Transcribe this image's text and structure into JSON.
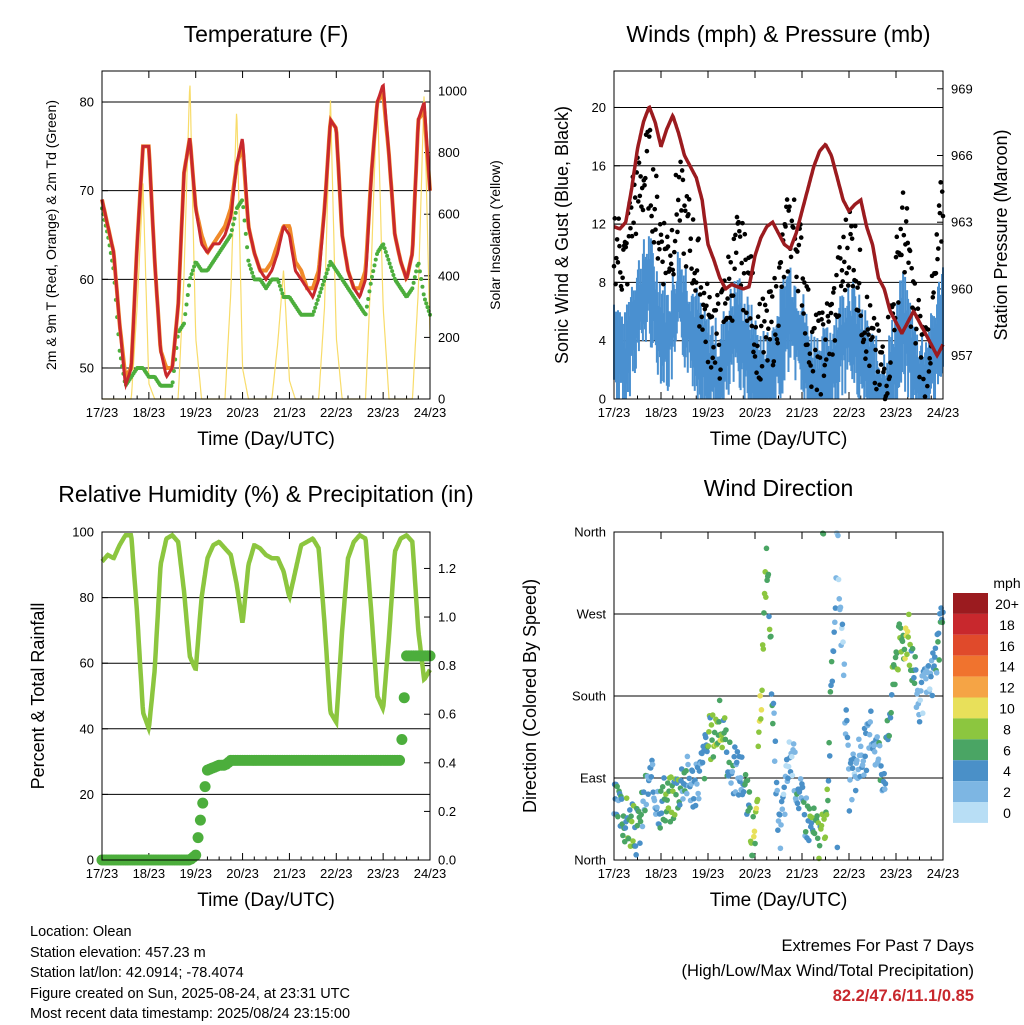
{
  "x_tick_labels": [
    "17/23",
    "18/23",
    "19/23",
    "20/23",
    "21/23",
    "22/23",
    "23/23",
    "24/23"
  ],
  "x_axis_label": "Time (Day/UTC)",
  "colors": {
    "temp_2m": "#c8282d",
    "temp_9m": "#f08a2a",
    "dewpoint": "#4cae3c",
    "solar": "#f8dc6a",
    "wind": "#4a90d0",
    "gust": "#000000",
    "pressure": "#9b1b1f",
    "rh": "#8cc63f",
    "precip": "#4cae3c"
  },
  "chart_data": [
    {
      "type": "line",
      "title": "Temperature (F)",
      "xlabel": "Time (Day/UTC)",
      "ylabel": "2m & 9m T (Red, Orange) & 2m Td (Green)",
      "ylabel_right": "Solar Insolation (Yellow)",
      "ylim": [
        46.5,
        83.5
      ],
      "ylim_right": [
        0,
        1065
      ],
      "yticks": [
        50,
        60,
        70,
        80
      ],
      "yticks_right": [
        0,
        200,
        400,
        600,
        800,
        1000
      ],
      "grid": true,
      "x": [
        "17/23",
        "17/23+3h",
        "17/23+6h",
        "17/23+9h",
        "17/23+12h",
        "17/23+15h",
        "17/23+18h",
        "17/23+21h",
        "18/23",
        "18/23+3h",
        "18/23+6h",
        "18/23+9h",
        "18/23+12h",
        "18/23+15h",
        "18/23+18h",
        "18/23+21h",
        "19/23",
        "19/23+3h",
        "19/23+6h",
        "19/23+9h",
        "19/23+12h",
        "19/23+15h",
        "19/23+18h",
        "19/23+21h",
        "20/23",
        "20/23+3h",
        "20/23+6h",
        "20/23+9h",
        "20/23+12h",
        "20/23+15h",
        "20/23+18h",
        "20/23+21h",
        "21/23",
        "21/23+3h",
        "21/23+6h",
        "21/23+9h",
        "21/23+12h",
        "21/23+15h",
        "21/23+18h",
        "21/23+21h",
        "22/23",
        "22/23+3h",
        "22/23+6h",
        "22/23+9h",
        "22/23+12h",
        "22/23+15h",
        "22/23+18h",
        "22/23+21h",
        "23/23",
        "23/23+3h",
        "23/23+6h",
        "23/23+9h",
        "23/23+12h",
        "23/23+15h",
        "23/23+18h",
        "23/23+21h",
        "24/23"
      ],
      "series": [
        {
          "name": "2m T",
          "values": [
            69,
            66,
            63,
            55,
            48,
            50,
            64,
            75,
            75,
            62,
            52,
            49,
            50,
            57,
            72,
            76,
            68,
            64,
            63,
            64,
            64,
            65,
            67,
            73,
            76,
            66,
            63,
            61,
            60,
            61,
            63,
            66,
            65,
            61,
            60,
            59,
            58,
            60,
            68,
            78,
            77,
            65,
            61,
            59,
            58,
            60,
            72,
            80,
            82,
            74,
            65,
            62,
            60,
            63,
            78,
            80,
            70
          ]
        },
        {
          "name": "9m T",
          "values": [
            69,
            66,
            63,
            55,
            49,
            50,
            64,
            75,
            75,
            62,
            52,
            50,
            50,
            57,
            72,
            76,
            68,
            65,
            63,
            64,
            65,
            66,
            68,
            73,
            75,
            66,
            63,
            61,
            61,
            62,
            64,
            66,
            66,
            62,
            61,
            59,
            59,
            61,
            68,
            78,
            77,
            65,
            61,
            59,
            59,
            61,
            72,
            80,
            81,
            74,
            65,
            62,
            60,
            63,
            78,
            79,
            70
          ]
        },
        {
          "name": "2m Td",
          "values": [
            68,
            65,
            61,
            52,
            48,
            49,
            50,
            50,
            49,
            49,
            48,
            48,
            48,
            54,
            55,
            60,
            62,
            61,
            61,
            62,
            63,
            64,
            65,
            68,
            69,
            62,
            60,
            60,
            59,
            60,
            60,
            58,
            58,
            57,
            56,
            56,
            56,
            58,
            60,
            62,
            61,
            60,
            59,
            58,
            57,
            56,
            60,
            63,
            64,
            62,
            60,
            59,
            58,
            59,
            62,
            58,
            56
          ]
        },
        {
          "name": "Solar",
          "values": [
            0,
            0,
            0,
            0,
            0,
            0,
            300,
            700,
            50,
            0,
            0,
            0,
            0,
            0,
            400,
            1040,
            200,
            0,
            0,
            0,
            0,
            0,
            350,
            950,
            100,
            0,
            0,
            0,
            0,
            0,
            180,
            420,
            60,
            0,
            0,
            0,
            0,
            0,
            300,
            980,
            200,
            0,
            0,
            0,
            0,
            0,
            450,
            1000,
            300,
            0,
            0,
            0,
            0,
            0,
            350,
            1000,
            200
          ]
        }
      ]
    },
    {
      "type": "scatter",
      "title": "Winds (mph) & Pressure (mb)",
      "xlabel": "Time (Day/UTC)",
      "ylabel": "Sonic Wind & Gust (Blue, Black)",
      "ylabel_right": "Station Pressure (Maroon)",
      "ylim": [
        0,
        22.5
      ],
      "ylim_right": [
        955.05,
        969.8
      ],
      "yticks": [
        0,
        4,
        8,
        12,
        16,
        20
      ],
      "yticks_right": [
        957,
        960,
        963,
        966,
        969
      ],
      "grid": true,
      "x": [
        "17/23",
        "17/23+3h",
        "17/23+6h",
        "17/23+9h",
        "17/23+12h",
        "17/23+15h",
        "17/23+18h",
        "17/23+21h",
        "18/23",
        "18/23+3h",
        "18/23+6h",
        "18/23+9h",
        "18/23+12h",
        "18/23+15h",
        "18/23+18h",
        "18/23+21h",
        "19/23",
        "19/23+3h",
        "19/23+6h",
        "19/23+9h",
        "19/23+12h",
        "19/23+15h",
        "19/23+18h",
        "19/23+21h",
        "20/23",
        "20/23+3h",
        "20/23+6h",
        "20/23+9h",
        "20/23+12h",
        "20/23+15h",
        "20/23+18h",
        "20/23+21h",
        "21/23",
        "21/23+3h",
        "21/23+6h",
        "21/23+9h",
        "21/23+12h",
        "21/23+15h",
        "21/23+18h",
        "21/23+21h",
        "22/23",
        "22/23+3h",
        "22/23+6h",
        "22/23+9h",
        "22/23+12h",
        "22/23+15h",
        "22/23+18h",
        "22/23+21h",
        "23/23",
        "23/23+3h",
        "23/23+6h",
        "23/23+9h",
        "23/23+12h",
        "23/23+15h",
        "23/23+18h",
        "23/23+21h",
        "24/23"
      ],
      "series": [
        {
          "name": "Sonic Wind",
          "values": [
            5,
            4,
            3,
            6,
            7,
            8,
            9,
            7,
            6,
            5,
            6,
            8,
            7,
            6,
            5,
            4,
            3,
            3,
            2,
            4,
            5,
            6,
            5,
            4,
            3,
            2,
            2,
            3,
            4,
            6,
            7,
            6,
            5,
            3,
            2,
            2,
            2,
            3,
            4,
            5,
            6,
            5,
            4,
            3,
            2,
            1,
            1,
            2,
            4,
            6,
            5,
            3,
            2,
            2,
            3,
            5,
            7
          ]
        },
        {
          "name": "Gust",
          "values": [
            11,
            10,
            9,
            13,
            14,
            15,
            16,
            13,
            11,
            10,
            11,
            14,
            12,
            11,
            9,
            7,
            5,
            5,
            4,
            7,
            8,
            10,
            9,
            8,
            5,
            4,
            4,
            5,
            7,
            10,
            12,
            11,
            9,
            5,
            3,
            3,
            4,
            5,
            7,
            9,
            11,
            10,
            7,
            5,
            3,
            2,
            2,
            4,
            8,
            12,
            10,
            6,
            4,
            3,
            5,
            9,
            14
          ]
        },
        {
          "name": "Pressure",
          "values": [
            962.8,
            962.7,
            963.0,
            964.5,
            966.3,
            967.5,
            968.2,
            967.5,
            966.4,
            967.2,
            967.8,
            967.0,
            966.0,
            965.5,
            965.0,
            964.0,
            962.0,
            961.3,
            960.5,
            960.0,
            960.2,
            960.1,
            960.0,
            960.1,
            961.5,
            962.3,
            962.8,
            963.0,
            962.5,
            962.0,
            961.8,
            962.5,
            963.5,
            964.5,
            965.5,
            966.2,
            966.5,
            966.0,
            965.0,
            964.0,
            963.5,
            963.8,
            964.0,
            962.8,
            962.0,
            960.5,
            960.0,
            959.0,
            958.5,
            958.0,
            958.5,
            959.0,
            958.5,
            958.0,
            957.5,
            957.0,
            957.5
          ]
        }
      ]
    },
    {
      "type": "line",
      "title": "Relative Humidity (%) & Precipitation (in)",
      "xlabel": "Time (Day/UTC)",
      "ylabel": "Percent & Total Rainfall",
      "ylim": [
        0,
        100
      ],
      "ylim_right": [
        0,
        1.35
      ],
      "yticks": [
        0,
        20,
        40,
        60,
        80,
        100
      ],
      "yticks_right": [
        0.0,
        0.2,
        0.4,
        0.6,
        0.8,
        1.0,
        1.2
      ],
      "grid": true,
      "x": [
        "17/23",
        "17/23+3h",
        "17/23+6h",
        "17/23+9h",
        "17/23+12h",
        "17/23+15h",
        "17/23+18h",
        "17/23+21h",
        "18/23",
        "18/23+3h",
        "18/23+6h",
        "18/23+9h",
        "18/23+12h",
        "18/23+15h",
        "18/23+18h",
        "18/23+21h",
        "19/23",
        "19/23+3h",
        "19/23+6h",
        "19/23+9h",
        "19/23+12h",
        "19/23+15h",
        "19/23+18h",
        "19/23+21h",
        "20/23",
        "20/23+3h",
        "20/23+6h",
        "20/23+9h",
        "20/23+12h",
        "20/23+15h",
        "20/23+18h",
        "20/23+21h",
        "21/23",
        "21/23+3h",
        "21/23+6h",
        "21/23+9h",
        "21/23+12h",
        "21/23+15h",
        "21/23+18h",
        "21/23+21h",
        "22/23",
        "22/23+3h",
        "22/23+6h",
        "22/23+9h",
        "22/23+12h",
        "22/23+15h",
        "22/23+18h",
        "22/23+21h",
        "23/23",
        "23/23+3h",
        "23/23+6h",
        "23/23+9h",
        "23/23+12h",
        "23/23+15h",
        "23/23+18h",
        "23/23+21h",
        "24/23"
      ],
      "series": [
        {
          "name": "Relative Humidity",
          "values": [
            91,
            93,
            92,
            96,
            99,
            99,
            75,
            45,
            40,
            58,
            90,
            98,
            99,
            97,
            82,
            62,
            58,
            80,
            92,
            96,
            97,
            95,
            93,
            84,
            72,
            90,
            96,
            95,
            93,
            92,
            92,
            88,
            80,
            88,
            96,
            97,
            98,
            95,
            72,
            45,
            42,
            70,
            92,
            97,
            99,
            98,
            75,
            50,
            46,
            68,
            94,
            98,
            99,
            97,
            70,
            55,
            58
          ]
        },
        {
          "name": "Total Precipitation",
          "values": [
            0,
            0,
            0,
            0,
            0,
            0,
            0,
            0,
            0,
            0,
            0,
            0,
            0,
            0,
            0,
            0,
            0.02,
            0.2,
            0.37,
            0.38,
            0.39,
            0.39,
            0.41,
            0.41,
            0.41,
            0.41,
            0.41,
            0.41,
            0.41,
            0.41,
            0.41,
            0.41,
            0.41,
            0.41,
            0.41,
            0.41,
            0.41,
            0.41,
            0.41,
            0.41,
            0.41,
            0.41,
            0.41,
            0.41,
            0.41,
            0.41,
            0.41,
            0.41,
            0.41,
            0.41,
            0.41,
            0.41,
            0.84,
            0.84,
            0.84,
            0.84,
            0.84
          ]
        }
      ]
    },
    {
      "type": "scatter",
      "title": "Wind Direction",
      "xlabel": "Time (Day/UTC)",
      "ylabel": "Direction (Colored By Speed)",
      "y_categories": [
        "North",
        "East",
        "South",
        "West",
        "North"
      ],
      "ylim": [
        0,
        360
      ],
      "grid": true,
      "legend": {
        "title": "mph",
        "placement": "right",
        "labels": [
          "20+",
          "18",
          "16",
          "14",
          "12",
          "10",
          "8",
          "6",
          "4",
          "2",
          "0"
        ],
        "colors": [
          "#9b1b1f",
          "#c8282d",
          "#e04a2b",
          "#f0732e",
          "#f5a445",
          "#e8e05a",
          "#8cc63f",
          "#4aa564",
          "#4a90c8",
          "#7db6e3",
          "#b8def5"
        ]
      },
      "x": [
        "17/23",
        "17/23+6h",
        "17/23+12h",
        "17/23+18h",
        "18/23",
        "18/23+6h",
        "18/23+12h",
        "18/23+18h",
        "19/23",
        "19/23+6h",
        "19/23+12h",
        "19/23+18h",
        "20/23",
        "20/23+6h",
        "20/23+12h",
        "20/23+18h",
        "21/23",
        "21/23+6h",
        "21/23+12h",
        "21/23+18h",
        "22/23",
        "22/23+6h",
        "22/23+12h",
        "22/23+18h",
        "23/23",
        "23/23+6h",
        "23/23+12h",
        "23/23+18h",
        "24/23"
      ],
      "series": [
        {
          "name": "Direction",
          "values": [
            60,
            45,
            30,
            90,
            60,
            70,
            95,
            80,
            130,
            150,
            100,
            95,
            10,
            340,
            20,
            120,
            60,
            35,
            20,
            350,
            80,
            110,
            140,
            95,
            230,
            250,
            170,
            200,
            260
          ]
        },
        {
          "name": "Speed",
          "values": [
            4,
            6,
            5,
            3,
            5,
            7,
            4,
            3,
            6,
            8,
            4,
            3,
            8,
            7,
            3,
            2,
            4,
            6,
            7,
            2,
            3,
            2,
            3,
            4,
            7,
            8,
            2,
            3,
            6
          ]
        }
      ]
    }
  ],
  "footer": {
    "location": "Location: Olean",
    "elevation": "Station elevation: 457.23 m",
    "latlon": "Station lat/lon: 42.0914; -78.4074",
    "created": "Figure created on Sun, 2025-08-24, at 23:31 UTC",
    "latest": "Most recent data timestamp: 2025/08/24 23:15:00"
  },
  "extremes": {
    "heading": "Extremes For Past 7 Days",
    "subheading": "(High/Low/Max Wind/Total Precipitation)",
    "values": "82.2/47.6/11.1/0.85"
  }
}
